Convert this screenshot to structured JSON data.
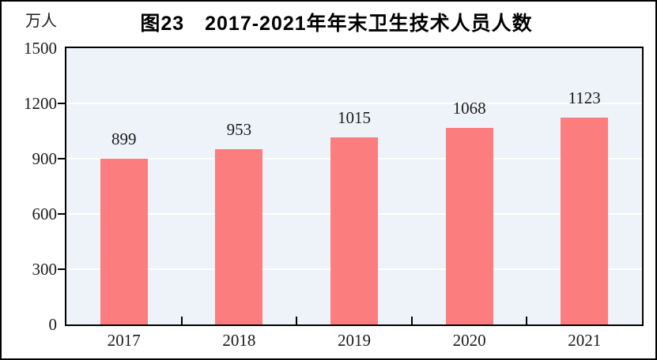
{
  "chart": {
    "title": "图23　2017-2021年年末卫生技术人员人数",
    "unit_label": "万人"
  },
  "chart_data": {
    "type": "bar",
    "title": "图23　2017-2021年年末卫生技术人员人数",
    "xlabel": "",
    "ylabel": "万人",
    "categories": [
      "2017",
      "2018",
      "2019",
      "2020",
      "2021"
    ],
    "values": [
      899,
      953,
      1015,
      1068,
      1123
    ],
    "ylim": [
      0,
      1500
    ],
    "y_ticks": [
      0,
      300,
      600,
      900,
      1200,
      1500
    ],
    "data_labels": true,
    "grid": "horizontal",
    "legend": "none",
    "colors": {
      "bar": "#fc7d7d",
      "plot_background": "#edf3f8",
      "gridline": "#ffffff",
      "axis": "#000000",
      "text": "#1a1a1a"
    }
  }
}
